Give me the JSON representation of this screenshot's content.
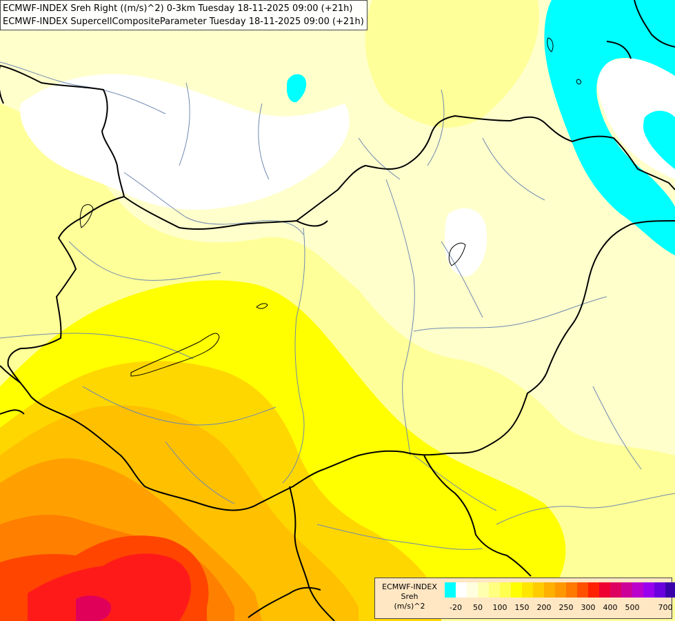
{
  "title": {
    "line1": "ECMWF-INDEX Sreh Right ((m/s)^2) 0-3km Tuesday 18-11-2025 09:00 (+21h)",
    "line2": "ECMWF-INDEX SupercellCompositeParameter Tuesday 18-11-2025 09:00 (+21h)"
  },
  "legend": {
    "line1": "ECMWF-INDEX",
    "line2": "Sreh",
    "line3": "(m/s)^2",
    "colors": [
      "#00ffff",
      "#ffffff",
      "#ffffe0",
      "#ffffb0",
      "#ffff80",
      "#ffff50",
      "#ffff00",
      "#ffe600",
      "#ffcc00",
      "#ffb000",
      "#ff9800",
      "#ff7800",
      "#ff5000",
      "#ff2000",
      "#ee0030",
      "#dd0060",
      "#cc0099",
      "#bb00cc",
      "#9900ee",
      "#6a00dd",
      "#3a00aa",
      "#000080"
    ],
    "ticks": [
      "-20",
      "50",
      "100",
      "150",
      "200",
      "250",
      "300",
      "400",
      "500",
      "700"
    ]
  },
  "colors": {
    "cyan": "#00ffff",
    "white": "#ffffff",
    "pale_yellow": "#ffffcc",
    "light_yellow": "#ffff99",
    "yellow": "#ffff00",
    "gold": "#ffd700",
    "amber": "#ffc000",
    "orange": "#ffa000",
    "dark_orange": "#ff7f00",
    "red_orange": "#ff4500",
    "red": "#ff1a1a",
    "crimson": "#e0005a",
    "border": "#000000",
    "river": "#6e88b0"
  }
}
